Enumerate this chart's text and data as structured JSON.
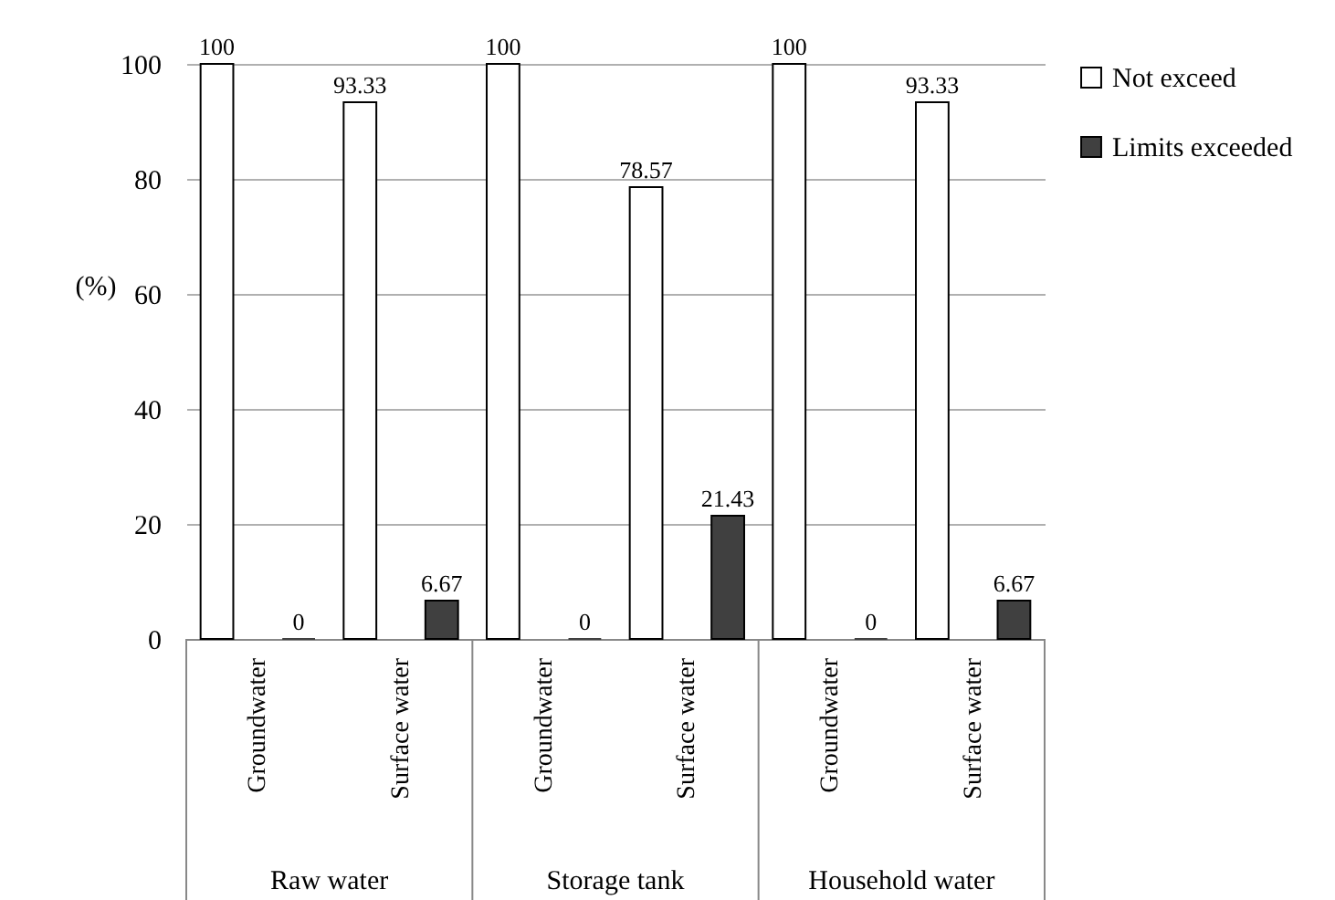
{
  "chart_data": {
    "type": "bar",
    "ylabel": "(%)",
    "categories": [
      "Groundwater",
      "Surface water",
      "Groundwater",
      "Surface water",
      "Groundwater",
      "Surface water"
    ],
    "series": [
      {
        "name": "Not exceed",
        "color": "#ffffff",
        "values": [
          100,
          93.33,
          100,
          78.57,
          100,
          93.33
        ]
      },
      {
        "name": "Limits exceeded",
        "color": "#404040",
        "values": [
          0,
          6.67,
          0,
          21.43,
          0,
          6.67
        ]
      }
    ],
    "ylim": [
      0,
      100
    ],
    "yticks": [
      0,
      20,
      40,
      60,
      80,
      100
    ],
    "grid": "y",
    "legend": "right",
    "data_labels": true,
    "annotations": [
      "Raw water",
      "Storage tank",
      "Household water"
    ]
  }
}
